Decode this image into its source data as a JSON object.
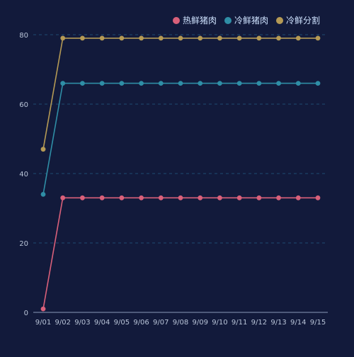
{
  "colors": {
    "background": "#121a3b",
    "grid": "#1f4a72",
    "axis": "#8a9bb8",
    "tick_text": "#b9c4d8",
    "legend_text": "#cfe3ff"
  },
  "chart_data": {
    "type": "line",
    "x": [
      "9/01",
      "9/02",
      "9/03",
      "9/04",
      "9/05",
      "9/06",
      "9/07",
      "9/08",
      "9/09",
      "9/10",
      "9/11",
      "9/12",
      "9/13",
      "9/14",
      "9/15"
    ],
    "ylim": [
      0,
      80
    ],
    "yticks": [
      0,
      20,
      40,
      60,
      80
    ],
    "grid": true,
    "grid_style": "dashed",
    "legend_position": "top-right",
    "series": [
      {
        "name": "热鲜猪肉",
        "color": "#d9607a",
        "values": [
          1,
          33,
          33,
          33,
          33,
          33,
          33,
          33,
          33,
          33,
          33,
          33,
          33,
          33,
          33
        ]
      },
      {
        "name": "冷鲜猪肉",
        "color": "#2f8ea6",
        "values": [
          34,
          66,
          66,
          66,
          66,
          66,
          66,
          66,
          66,
          66,
          66,
          66,
          66,
          66,
          66
        ]
      },
      {
        "name": "冷鲜分割",
        "color": "#b59a55",
        "values": [
          47,
          79,
          79,
          79,
          79,
          79,
          79,
          79,
          79,
          79,
          79,
          79,
          79,
          79,
          79
        ]
      }
    ]
  }
}
